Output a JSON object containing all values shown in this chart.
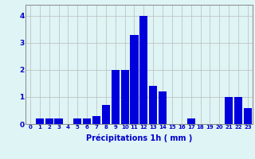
{
  "categories": [
    0,
    1,
    2,
    3,
    4,
    5,
    6,
    7,
    8,
    9,
    10,
    11,
    12,
    13,
    14,
    15,
    16,
    17,
    18,
    19,
    20,
    21,
    22,
    23
  ],
  "values": [
    0,
    0.2,
    0.2,
    0.2,
    0,
    0.2,
    0.2,
    0.3,
    0.7,
    2.0,
    2.0,
    3.3,
    4.0,
    1.4,
    1.2,
    0,
    0,
    0.2,
    0,
    0,
    0,
    1.0,
    1.0,
    0.6
  ],
  "bar_color": "#0000dd",
  "background_color": "#dff4f4",
  "grid_color": "#bbbbbb",
  "xlabel": "Précipitations 1h ( mm )",
  "xlim": [
    -0.5,
    23.5
  ],
  "ylim": [
    0,
    4.4
  ],
  "yticks": [
    0,
    1,
    2,
    3,
    4
  ],
  "xticks": [
    0,
    1,
    2,
    3,
    4,
    5,
    6,
    7,
    8,
    9,
    10,
    11,
    12,
    13,
    14,
    15,
    16,
    17,
    18,
    19,
    20,
    21,
    22,
    23
  ],
  "tick_color": "#0000cc",
  "xlabel_color": "#0000cc",
  "tick_fontsize": 5.0,
  "ylabel_fontsize": 6.5,
  "xlabel_fontsize": 7.0
}
